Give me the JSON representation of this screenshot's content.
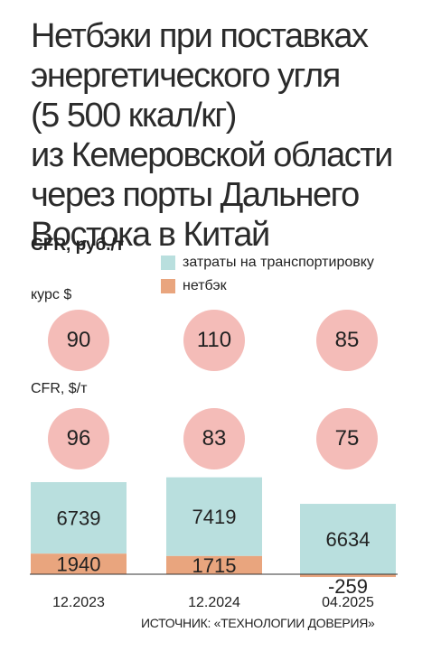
{
  "title": "Нетбэки при поставках\nэнергетического угля\n(5 500 ккал/кг)\nиз Кемеровской области\nчерез порты Дальнего\nВостока в Китай",
  "subtitle": "CFR, руб./т",
  "legend": [
    {
      "label": "затраты на транспортировку",
      "color": "#b9dfde"
    },
    {
      "label": "нетбэк",
      "color": "#e9a57e"
    }
  ],
  "rate_label": "курс $",
  "cfr_label": "CFR, $/т",
  "circle_color": "#f4bcb8",
  "rates": [
    "90",
    "110",
    "85"
  ],
  "cfr_usd": [
    "96",
    "83",
    "75"
  ],
  "source": "ИСТОЧНИК: «ТЕХНОЛОГИИ ДОВЕРИЯ»",
  "chart_data": {
    "type": "bar",
    "stacked": true,
    "categories": [
      "12.2023",
      "12.2024",
      "04.2025"
    ],
    "series": [
      {
        "name": "нетбэк",
        "values": [
          1940,
          1715,
          -259
        ],
        "color": "#e9a57e"
      },
      {
        "name": "затраты на транспортировку",
        "values": [
          6739,
          7419,
          6634
        ],
        "color": "#b9dfde"
      }
    ],
    "ylabel": "CFR, руб./т"
  }
}
